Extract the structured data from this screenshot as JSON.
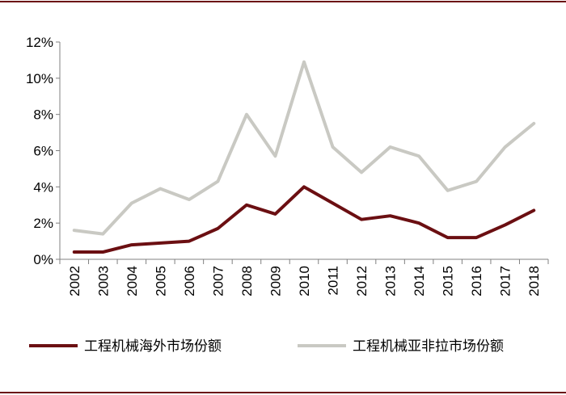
{
  "chart_data": {
    "type": "line",
    "title": "",
    "xlabel": "",
    "ylabel": "",
    "x": [
      "2002",
      "2003",
      "2004",
      "2005",
      "2006",
      "2007",
      "2008",
      "2009",
      "2010",
      "2011",
      "2012",
      "2013",
      "2014",
      "2015",
      "2016",
      "2017",
      "2018"
    ],
    "ylim": [
      0,
      12
    ],
    "yticks": [
      "0%",
      "2%",
      "4%",
      "6%",
      "8%",
      "10%",
      "12%"
    ],
    "grid": false,
    "legend_position": "bottom",
    "series": [
      {
        "name": "工程机械海外市场份额",
        "color": "#6b0f12",
        "values": [
          0.4,
          0.4,
          0.8,
          0.9,
          1.0,
          1.7,
          3.0,
          2.5,
          4.0,
          3.1,
          2.2,
          2.4,
          2.0,
          1.2,
          1.2,
          1.9,
          2.7
        ]
      },
      {
        "name": "工程机械亚非拉市场份额",
        "color": "#c9c9c3",
        "values": [
          1.6,
          1.4,
          3.1,
          3.9,
          3.3,
          4.3,
          8.0,
          5.7,
          10.9,
          6.2,
          4.8,
          6.2,
          5.7,
          3.8,
          4.3,
          6.2,
          7.5
        ]
      }
    ]
  },
  "colors": {
    "frame": "#6b0f12",
    "axis": "#808080"
  }
}
